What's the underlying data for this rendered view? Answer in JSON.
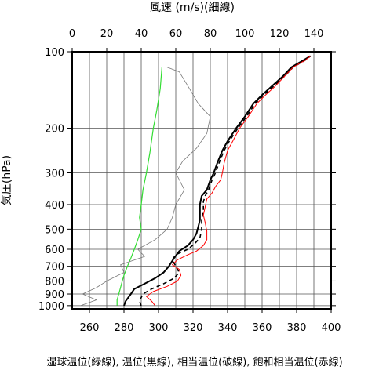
{
  "chart_data": {
    "type": "line",
    "title_top": "風速 (m/s)(細線)",
    "bottom_caption": "湿球温位(緑線), 温位(黒線), 相当温位(破線), 飽和相当温位(赤線)",
    "ylabel": "気圧(hPa)",
    "y_scale": "log",
    "ylim": [
      1030,
      100
    ],
    "y_ticks": [
      100,
      200,
      300,
      400,
      500,
      600,
      700,
      800,
      900,
      1000
    ],
    "temp_axis": {
      "range": [
        250,
        400
      ],
      "ticks": [
        260,
        280,
        300,
        320,
        340,
        360,
        380,
        400
      ]
    },
    "wind_axis": {
      "range": [
        0,
        150
      ],
      "ticks": [
        0,
        20,
        40,
        60,
        80,
        100,
        120,
        140
      ]
    },
    "grid": true,
    "colors": {
      "wetbulb": "#33dd33",
      "theta": "#000000",
      "thetae": "#000000",
      "thetaes": "#ff0000",
      "wind": "#777777"
    },
    "series": [
      {
        "key": "wetbulb",
        "style": "solid-green",
        "points": [
          [
            276,
            1000
          ],
          [
            276,
            950
          ],
          [
            277,
            900
          ],
          [
            278,
            850
          ],
          [
            279,
            800
          ],
          [
            280,
            760
          ],
          [
            282,
            700
          ],
          [
            284,
            650
          ],
          [
            286,
            600
          ],
          [
            288,
            550
          ],
          [
            290,
            500
          ],
          [
            289,
            450
          ],
          [
            290,
            400
          ],
          [
            291,
            350
          ],
          [
            293,
            300
          ],
          [
            295,
            250
          ],
          [
            297,
            200
          ],
          [
            299,
            170
          ],
          [
            301,
            140
          ],
          [
            302,
            115
          ]
        ]
      },
      {
        "key": "theta",
        "style": "solid-black",
        "points": [
          [
            280,
            1000
          ],
          [
            281,
            960
          ],
          [
            284,
            900
          ],
          [
            286,
            860
          ],
          [
            292,
            820
          ],
          [
            298,
            780
          ],
          [
            303,
            740
          ],
          [
            306,
            700
          ],
          [
            309,
            650
          ],
          [
            312,
            610
          ],
          [
            317,
            580
          ],
          [
            320,
            550
          ],
          [
            322,
            520
          ],
          [
            323,
            490
          ],
          [
            324,
            460
          ],
          [
            324,
            430
          ],
          [
            324,
            400
          ],
          [
            325,
            370
          ],
          [
            328,
            350
          ],
          [
            330,
            320
          ],
          [
            332,
            300
          ],
          [
            334,
            275
          ],
          [
            337,
            245
          ],
          [
            340,
            225
          ],
          [
            345,
            200
          ],
          [
            350,
            180
          ],
          [
            355,
            160
          ],
          [
            360,
            148
          ],
          [
            365,
            138
          ],
          [
            372,
            125
          ],
          [
            377,
            115
          ],
          [
            384,
            108
          ],
          [
            388,
            104
          ]
        ]
      },
      {
        "key": "thetae",
        "style": "dashed-black",
        "points": [
          [
            290,
            1000
          ],
          [
            289,
            960
          ],
          [
            291,
            900
          ],
          [
            296,
            860
          ],
          [
            303,
            820
          ],
          [
            309,
            780
          ],
          [
            312,
            740
          ],
          [
            310,
            700
          ],
          [
            308,
            660
          ],
          [
            310,
            630
          ],
          [
            317,
            600
          ],
          [
            321,
            570
          ],
          [
            324,
            540
          ],
          [
            325,
            500
          ],
          [
            325,
            460
          ],
          [
            326,
            420
          ],
          [
            326,
            390
          ],
          [
            327,
            370
          ],
          [
            329,
            350
          ],
          [
            331,
            320
          ],
          [
            333,
            300
          ],
          [
            335,
            275
          ],
          [
            338,
            245
          ],
          [
            341,
            225
          ],
          [
            346,
            200
          ],
          [
            351,
            180
          ],
          [
            356,
            160
          ],
          [
            361,
            148
          ],
          [
            366,
            138
          ],
          [
            373,
            125
          ],
          [
            378,
            115
          ],
          [
            385,
            108
          ],
          [
            388,
            104
          ]
        ]
      },
      {
        "key": "thetaes",
        "style": "solid-red",
        "points": [
          [
            298,
            1000
          ],
          [
            296,
            960
          ],
          [
            293,
            920
          ],
          [
            297,
            880
          ],
          [
            305,
            840
          ],
          [
            311,
            800
          ],
          [
            313,
            760
          ],
          [
            312,
            720
          ],
          [
            308,
            690
          ],
          [
            311,
            660
          ],
          [
            317,
            630
          ],
          [
            322,
            610
          ],
          [
            326,
            580
          ],
          [
            328,
            550
          ],
          [
            328,
            510
          ],
          [
            327,
            470
          ],
          [
            326,
            440
          ],
          [
            327,
            410
          ],
          [
            328,
            380
          ],
          [
            331,
            360
          ],
          [
            333,
            340
          ],
          [
            336,
            320
          ],
          [
            337,
            300
          ],
          [
            338,
            275
          ],
          [
            340,
            245
          ],
          [
            343,
            225
          ],
          [
            347,
            200
          ],
          [
            352,
            180
          ],
          [
            357,
            160
          ],
          [
            362,
            148
          ],
          [
            367,
            138
          ],
          [
            373,
            125
          ],
          [
            378,
            115
          ],
          [
            385,
            108
          ],
          [
            388,
            104
          ]
        ]
      },
      {
        "key": "wind",
        "style": "thin-gray",
        "points": [
          [
            5,
            1000
          ],
          [
            14,
            950
          ],
          [
            6,
            900
          ],
          [
            14,
            850
          ],
          [
            20,
            800
          ],
          [
            30,
            740
          ],
          [
            28,
            690
          ],
          [
            42,
            640
          ],
          [
            38,
            600
          ],
          [
            48,
            550
          ],
          [
            55,
            500
          ],
          [
            58,
            450
          ],
          [
            60,
            400
          ],
          [
            65,
            350
          ],
          [
            60,
            300
          ],
          [
            64,
            270
          ],
          [
            72,
            240
          ],
          [
            78,
            210
          ],
          [
            80,
            180
          ],
          [
            73,
            160
          ],
          [
            68,
            140
          ],
          [
            62,
            120
          ],
          [
            55,
            115
          ]
        ]
      }
    ]
  }
}
